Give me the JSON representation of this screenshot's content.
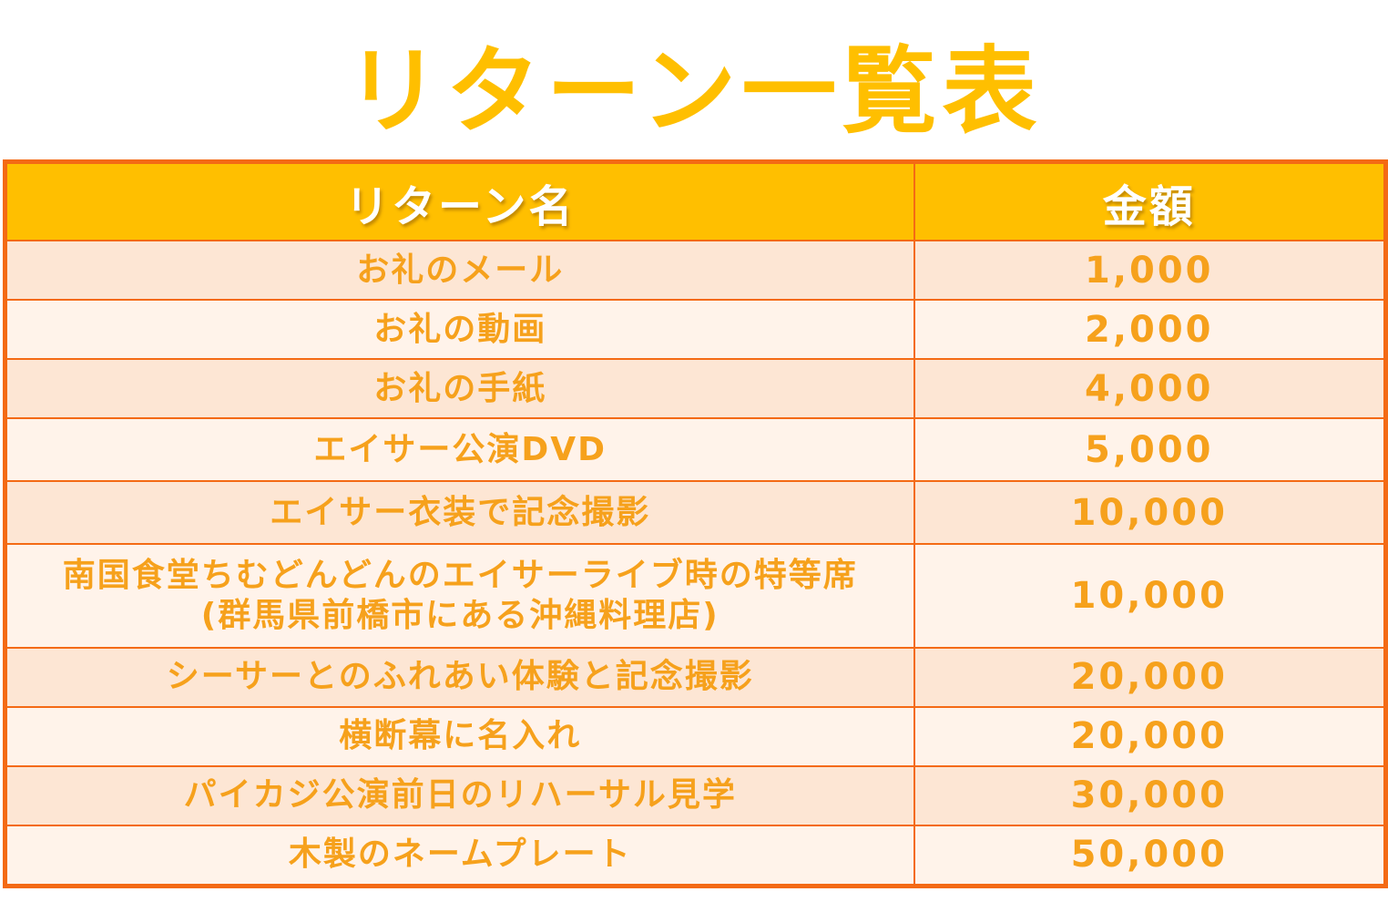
{
  "title": "リターン一覧表",
  "table": {
    "headers": [
      "リターン名",
      "金額"
    ],
    "rows": [
      {
        "name": [
          "お礼のメール"
        ],
        "amount": "1,000"
      },
      {
        "name": [
          "お礼の動画"
        ],
        "amount": "2,000"
      },
      {
        "name": [
          "お礼の手紙"
        ],
        "amount": "4,000"
      },
      {
        "name": [
          "エイサー公演DVD"
        ],
        "amount": "5,000"
      },
      {
        "name": [
          "エイサー衣装で記念撮影"
        ],
        "amount": "10,000"
      },
      {
        "name": [
          "南国食堂ちむどんどんのエイサーライブ時の特等席",
          "(群馬県前橋市にある沖縄料理店)"
        ],
        "amount": "10,000"
      },
      {
        "name": [
          "シーサーとのふれあい体験と記念撮影"
        ],
        "amount": "20,000"
      },
      {
        "name": [
          "横断幕に名入れ"
        ],
        "amount": "20,000"
      },
      {
        "name": [
          "パイカジ公演前日のリハーサル見学"
        ],
        "amount": "30,000"
      },
      {
        "name": [
          "木製のネームプレート"
        ],
        "amount": "50,000"
      }
    ]
  },
  "colors": {
    "title": "#ffbf00",
    "header_bg": "#ffbf00",
    "border": "#f46a14",
    "row_text": "#f6a11c",
    "row_odd_bg": "#fde6d4",
    "row_even_bg": "#fff3ea"
  }
}
